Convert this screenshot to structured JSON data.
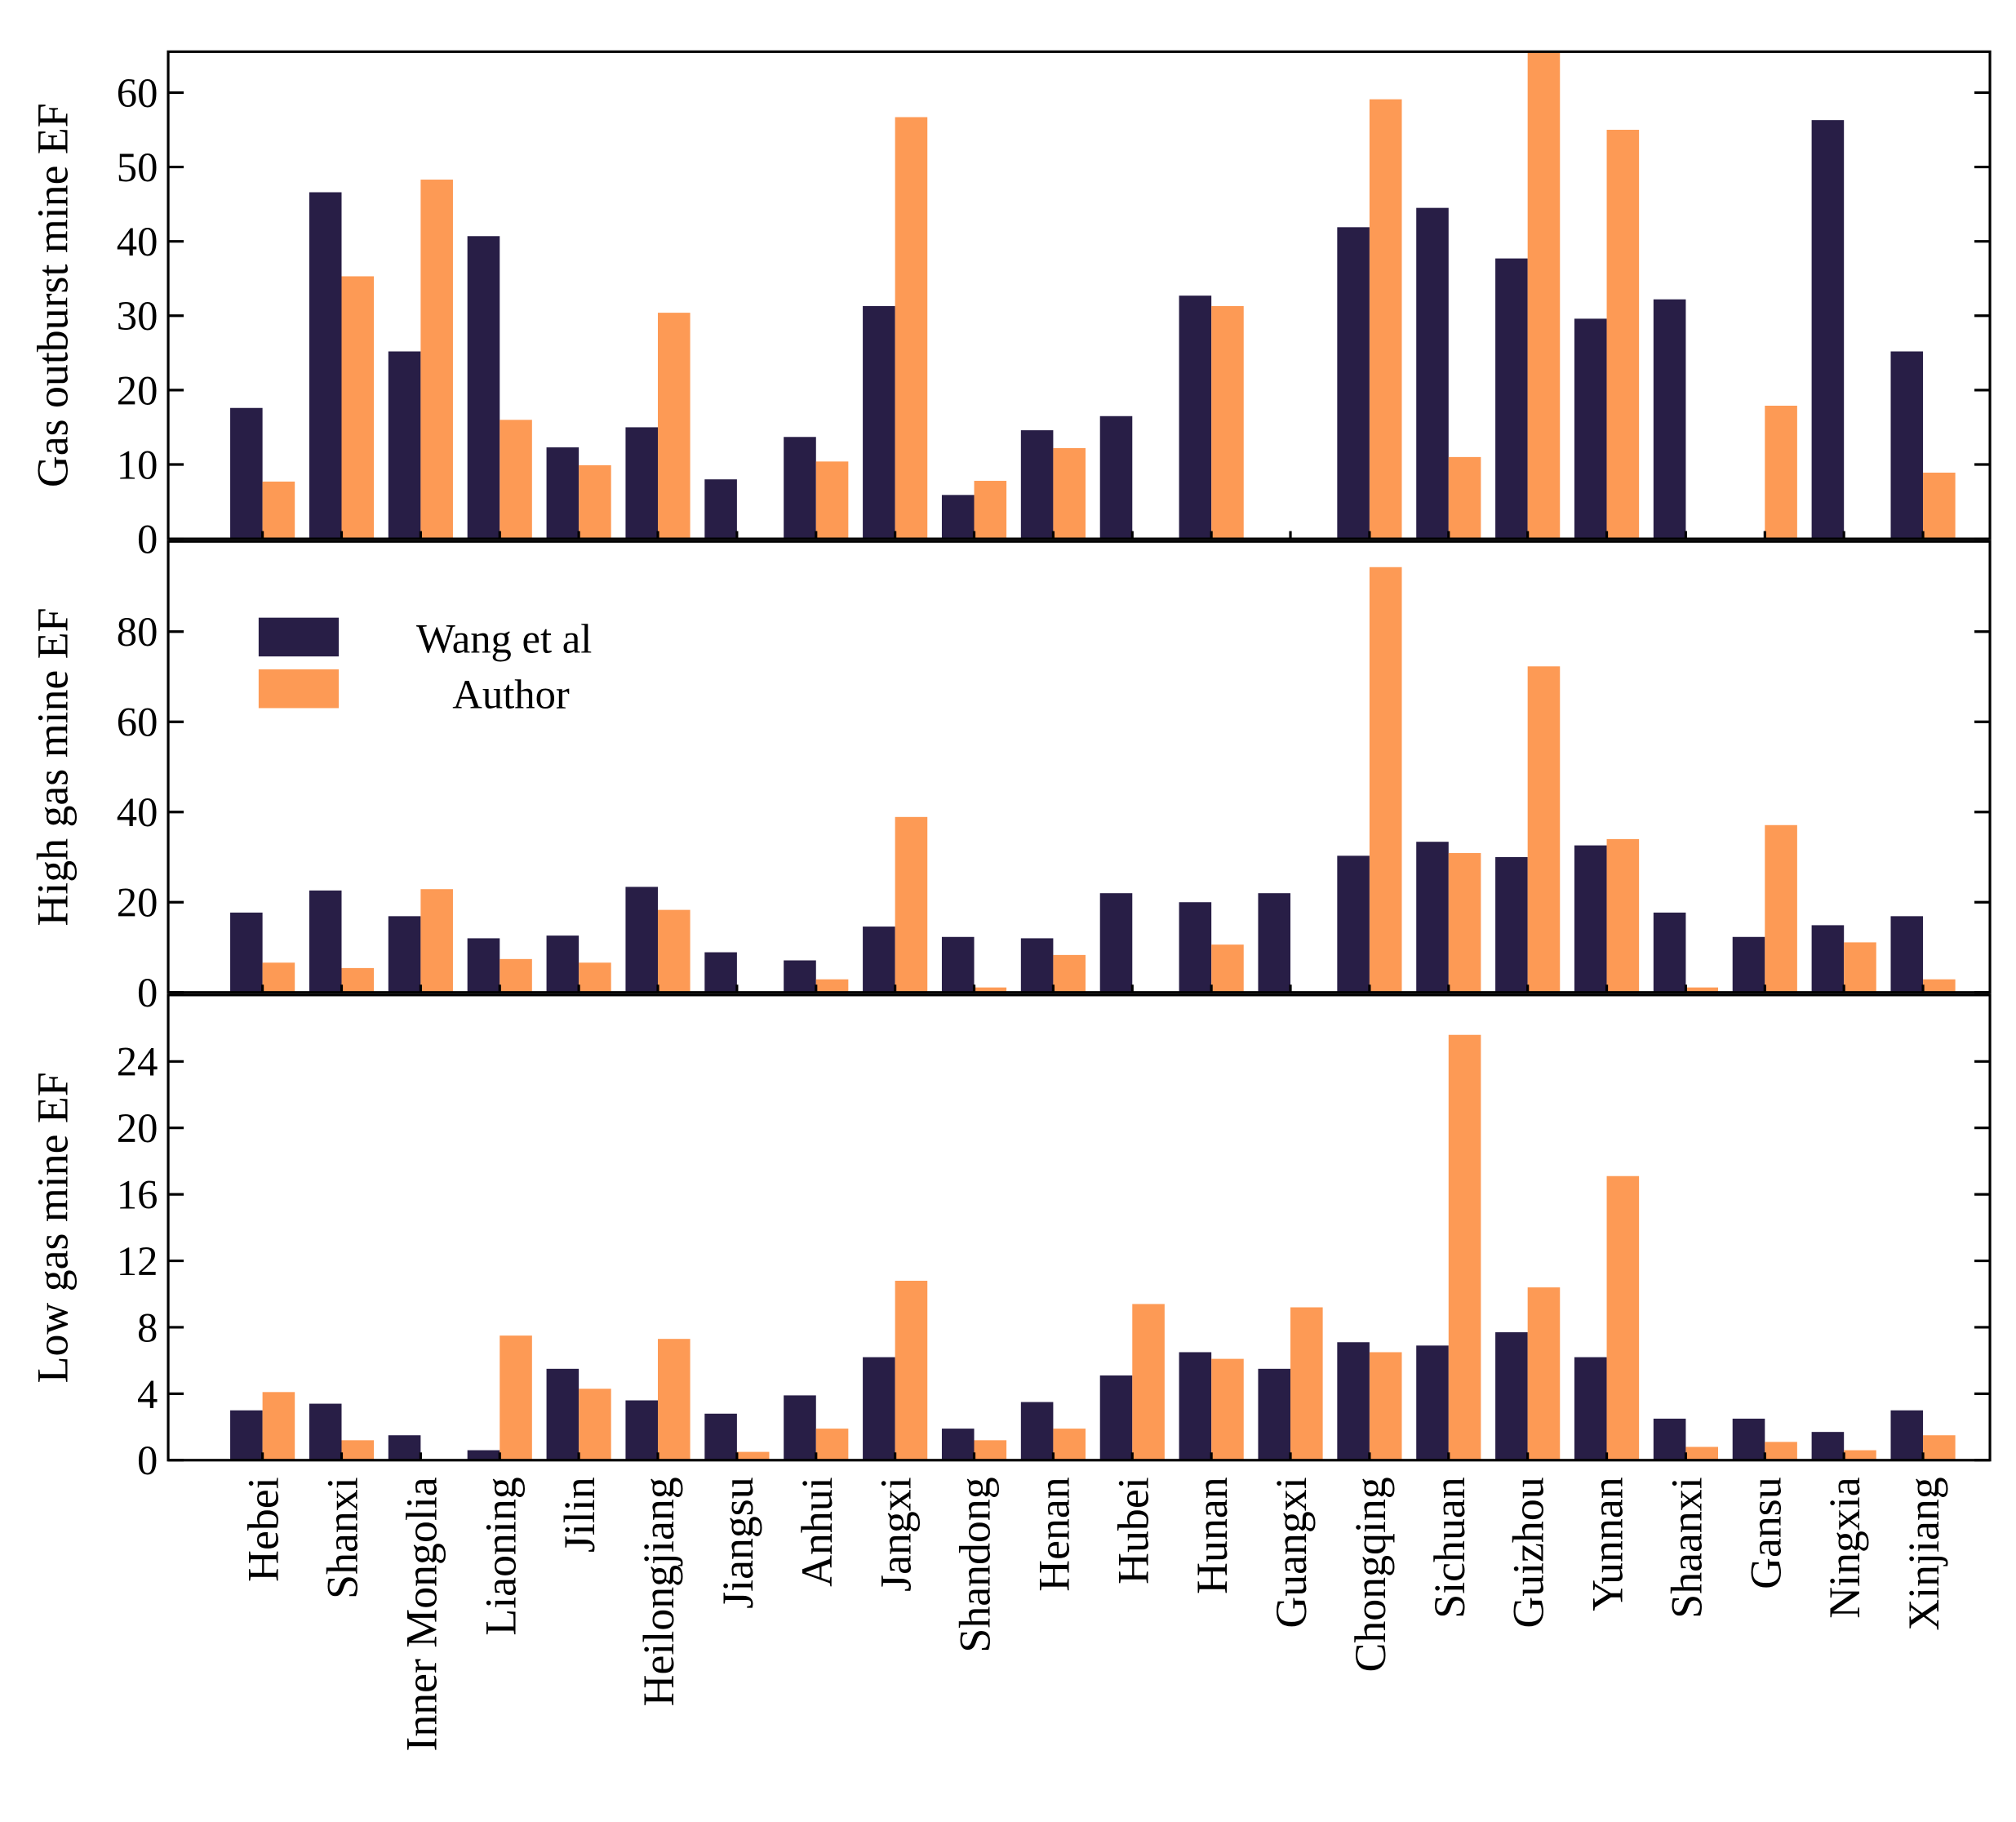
{
  "chart_data": {
    "type": "bar",
    "categories": [
      "Hebei",
      "Shanxi",
      "Inner Mongolia",
      "Liaoning",
      "Jilin",
      "Heilongjiang",
      "Jiangsu",
      "Anhui",
      "Jangxi",
      "Shandong",
      "Henan",
      "Hubei",
      "Hunan",
      "Guangxi",
      "Chongqing",
      "Sichuan",
      "Guizhou",
      "Yunnan",
      "Shaanxi",
      "Gansu",
      "Ningxia",
      "Xinjiang"
    ],
    "legend": {
      "placement": "upper-left of middle panel",
      "entries": [
        "Wang et al",
        "Author"
      ]
    },
    "colors": {
      "Wang et al": "#281e46",
      "Author": "#fd9a55"
    },
    "panels": [
      {
        "ylabel": "Gas outburst mine EF",
        "ylim": [
          0,
          65.5
        ],
        "yticks": [
          0,
          10,
          20,
          30,
          40,
          50,
          60
        ],
        "series": [
          {
            "name": "Wang et al",
            "values": [
              17.6,
              46.6,
              25.2,
              40.7,
              12.3,
              15.0,
              8.0,
              13.7,
              31.3,
              5.9,
              14.6,
              16.5,
              32.7,
              0,
              41.9,
              44.5,
              37.7,
              29.6,
              32.2,
              0,
              56.3,
              25.2
            ]
          },
          {
            "name": "Author",
            "values": [
              7.7,
              35.3,
              48.3,
              16.0,
              9.9,
              30.4,
              0,
              10.4,
              56.7,
              7.8,
              12.2,
              0,
              31.3,
              0,
              59.1,
              11.0,
              66,
              55.0,
              0,
              17.9,
              0,
              8.9
            ]
          }
        ]
      },
      {
        "ylabel": "High gas mine EF",
        "ylim": [
          0,
          100
        ],
        "yticks": [
          0,
          20,
          40,
          60,
          80
        ],
        "series": [
          {
            "name": "Wang et al",
            "values": [
              17.7,
              22.6,
              16.9,
              12.0,
              12.6,
              23.4,
              8.9,
              7.1,
              14.6,
              12.3,
              12.0,
              22.0,
              20.0,
              22.0,
              30.3,
              33.4,
              30.0,
              32.6,
              17.7,
              12.3,
              14.9,
              16.9
            ]
          },
          {
            "name": "Author",
            "values": [
              6.6,
              5.4,
              22.9,
              7.4,
              6.6,
              18.3,
              0,
              2.9,
              38.9,
              1.1,
              8.3,
              0,
              10.6,
              0,
              94.3,
              30.9,
              72.3,
              34.0,
              1.1,
              37.1,
              11.1,
              2.9
            ]
          }
        ]
      },
      {
        "ylabel": "Low gas mine EF",
        "ylim": [
          0,
          28
        ],
        "yticks": [
          0,
          4,
          8,
          12,
          16,
          20,
          24
        ],
        "series": [
          {
            "name": "Wang et al",
            "values": [
              3.0,
              3.4,
              1.5,
              0.6,
              5.5,
              3.6,
              2.8,
              3.9,
              6.2,
              1.9,
              3.5,
              5.1,
              6.5,
              5.5,
              7.1,
              6.9,
              7.7,
              6.2,
              2.5,
              2.5,
              1.7,
              3.0
            ]
          },
          {
            "name": "Author",
            "values": [
              4.1,
              1.2,
              0,
              7.5,
              4.3,
              7.3,
              0.5,
              1.9,
              10.8,
              1.2,
              1.9,
              9.4,
              6.1,
              9.2,
              6.5,
              25.6,
              10.4,
              17.1,
              0.8,
              1.1,
              0.6,
              1.5
            ]
          }
        ]
      }
    ]
  }
}
